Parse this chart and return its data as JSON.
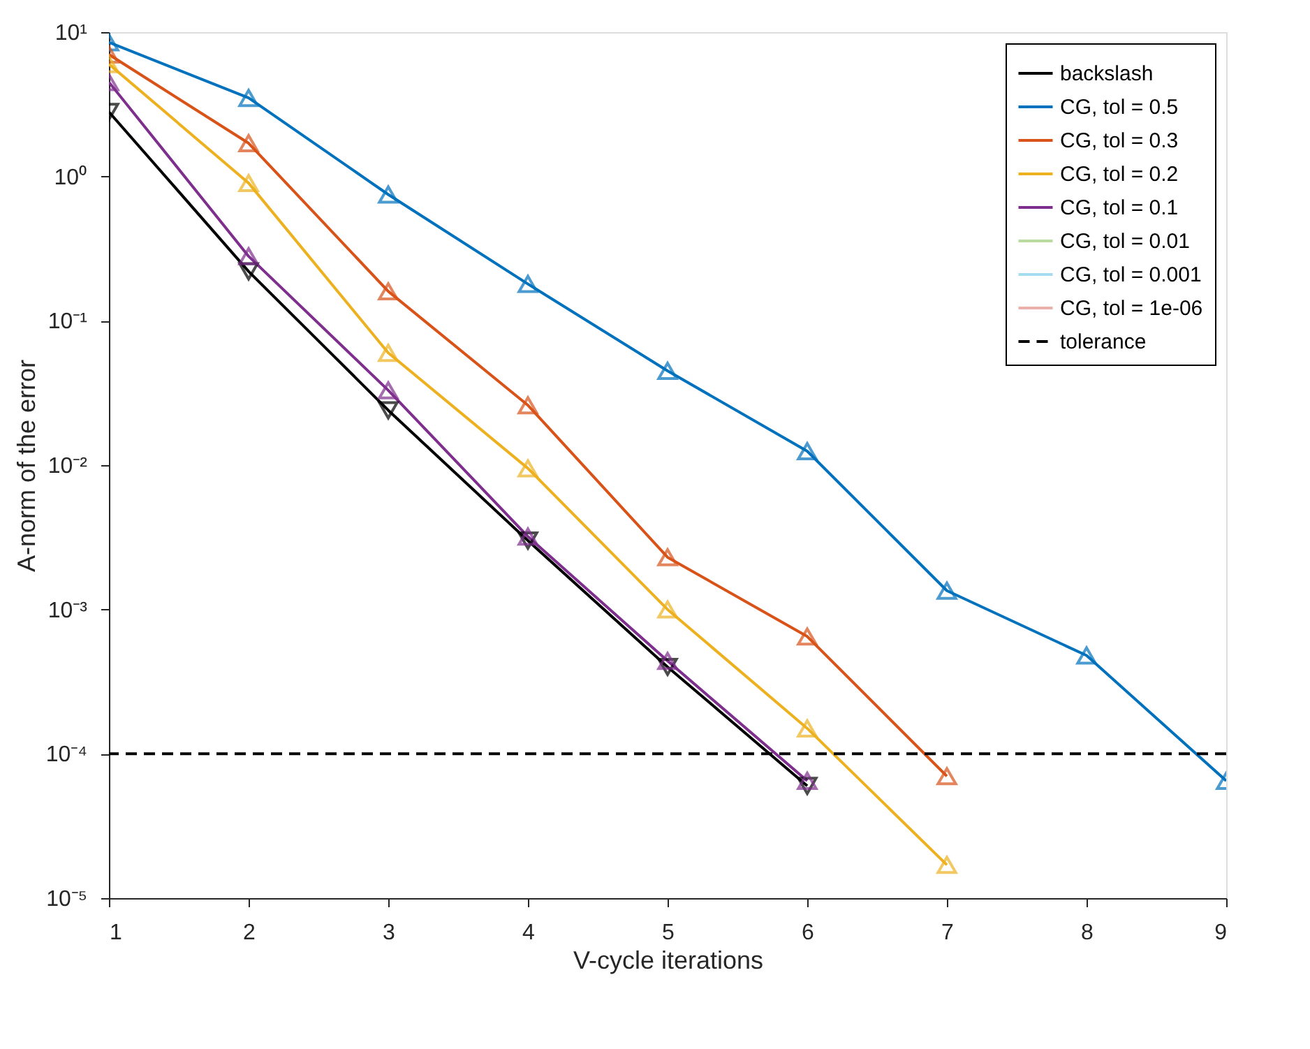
{
  "chart_data": {
    "type": "line",
    "xlabel": "V-cycle iterations",
    "ylabel": "A-norm of the error",
    "log": "y",
    "x": [
      1,
      2,
      3,
      4,
      5,
      6,
      7,
      8,
      9
    ],
    "xlim": [
      1,
      9
    ],
    "xticks": [
      1,
      2,
      3,
      4,
      5,
      6,
      7,
      8,
      9
    ],
    "ylim": [
      1e-05,
      10
    ],
    "yticks": [
      {
        "value": 1e-05,
        "label": "10⁻⁵"
      },
      {
        "value": 0.0001,
        "label": "10⁻⁴"
      },
      {
        "value": 0.001,
        "label": "10⁻³"
      },
      {
        "value": 0.01,
        "label": "10⁻²"
      },
      {
        "value": 0.1,
        "label": "10⁻¹"
      },
      {
        "value": 1,
        "label": "10⁰"
      },
      {
        "value": 10,
        "label": "10¹"
      }
    ],
    "grid": false,
    "legend": "top right",
    "marker": "triangle",
    "line_style": "solid",
    "series": [
      {
        "name": "backslash",
        "color": "#000000",
        "marker": "triangle-down",
        "values": [
          2.8,
          0.22,
          0.024,
          0.003,
          0.0004,
          6e-05,
          null,
          null,
          null
        ]
      },
      {
        "name": "CG, tol = 0.5",
        "color": "#0072bd",
        "values": [
          8.5,
          3.5,
          0.75,
          0.18,
          0.045,
          0.0125,
          0.00135,
          0.00048,
          6.5e-05
        ]
      },
      {
        "name": "CG, tol = 0.3",
        "color": "#d95319",
        "values": [
          7,
          1.7,
          0.16,
          0.026,
          0.0023,
          0.00065,
          7e-05,
          null,
          null
        ]
      },
      {
        "name": "CG, tol = 0.2",
        "color": "#edb120",
        "values": [
          6,
          0.9,
          0.06,
          0.0095,
          0.001,
          0.00015,
          1.7e-05,
          null,
          null
        ]
      },
      {
        "name": "CG, tol = 0.1",
        "color": "#7e2f8e",
        "values": [
          4.5,
          0.28,
          0.033,
          0.0032,
          0.00044,
          6.5e-05,
          null,
          null,
          null
        ]
      },
      {
        "name": "CG, tol = 0.01",
        "color": "#b9dba0",
        "values": [
          null,
          null,
          null,
          null,
          null,
          null,
          null,
          null,
          null
        ]
      },
      {
        "name": "CG, tol = 0.001",
        "color": "#a6dcf2",
        "values": [
          null,
          null,
          null,
          null,
          null,
          null,
          null,
          null,
          null
        ]
      },
      {
        "name": "CG, tol = 1e-06",
        "color": "#eab0aa",
        "values": [
          null,
          null,
          null,
          null,
          null,
          null,
          null,
          null,
          null
        ]
      }
    ],
    "ref_lines": [
      {
        "axis": "y",
        "value": 0.0001,
        "label": "tolerance",
        "color": "#000000",
        "line_style": "dashed"
      }
    ]
  }
}
